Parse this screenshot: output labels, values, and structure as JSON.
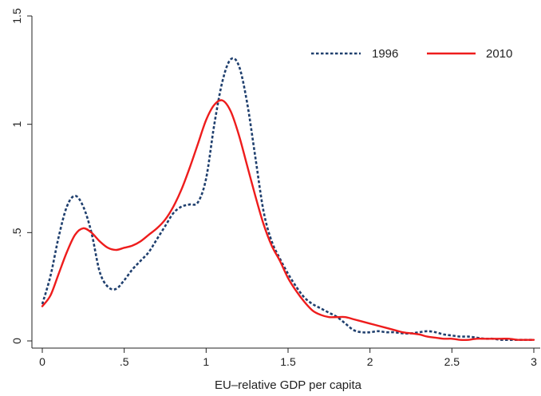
{
  "chart_data": {
    "type": "line",
    "title": "",
    "xlabel": "EU–relative GDP per capita",
    "ylabel": "",
    "xlim": [
      0,
      3
    ],
    "ylim": [
      0,
      1.5
    ],
    "x_ticks": [
      0,
      0.5,
      1,
      1.5,
      2,
      2.5,
      3
    ],
    "x_tick_labels": [
      "0",
      ".5",
      "1",
      "1.5",
      "2",
      "2.5",
      "3"
    ],
    "y_ticks": [
      0,
      0.5,
      1,
      1.5
    ],
    "y_tick_labels": [
      "0",
      ".5",
      "1",
      "1.5"
    ],
    "grid": false,
    "legend_position": "top-right",
    "series": [
      {
        "name": "1996",
        "color": "#1f3f6e",
        "style": "dotted",
        "x": [
          0,
          0.05,
          0.1,
          0.15,
          0.2,
          0.25,
          0.3,
          0.35,
          0.4,
          0.45,
          0.5,
          0.55,
          0.6,
          0.65,
          0.7,
          0.75,
          0.8,
          0.85,
          0.9,
          0.95,
          1.0,
          1.05,
          1.1,
          1.15,
          1.2,
          1.25,
          1.3,
          1.35,
          1.4,
          1.45,
          1.5,
          1.55,
          1.6,
          1.65,
          1.7,
          1.75,
          1.8,
          1.85,
          1.9,
          1.95,
          2.0,
          2.05,
          2.1,
          2.15,
          2.2,
          2.25,
          2.3,
          2.35,
          2.4,
          2.45,
          2.5,
          2.55,
          2.6,
          2.65,
          2.7,
          2.75,
          2.8,
          2.85,
          2.9,
          2.95,
          3.0
        ],
        "values": [
          0.17,
          0.3,
          0.48,
          0.62,
          0.67,
          0.62,
          0.5,
          0.32,
          0.25,
          0.24,
          0.28,
          0.33,
          0.37,
          0.41,
          0.47,
          0.53,
          0.59,
          0.62,
          0.63,
          0.64,
          0.75,
          1.0,
          1.2,
          1.3,
          1.27,
          1.1,
          0.85,
          0.6,
          0.46,
          0.38,
          0.31,
          0.25,
          0.2,
          0.17,
          0.15,
          0.13,
          0.11,
          0.08,
          0.05,
          0.04,
          0.04,
          0.045,
          0.04,
          0.04,
          0.035,
          0.035,
          0.04,
          0.045,
          0.04,
          0.03,
          0.025,
          0.02,
          0.02,
          0.015,
          0.01,
          0.01,
          0.005,
          0.005,
          0.005,
          0.005,
          0.005
        ]
      },
      {
        "name": "2010",
        "color": "#ee1c1c",
        "style": "solid",
        "x": [
          0,
          0.05,
          0.1,
          0.15,
          0.2,
          0.25,
          0.3,
          0.35,
          0.4,
          0.45,
          0.5,
          0.55,
          0.6,
          0.65,
          0.7,
          0.75,
          0.8,
          0.85,
          0.9,
          0.95,
          1.0,
          1.05,
          1.1,
          1.15,
          1.2,
          1.25,
          1.3,
          1.35,
          1.4,
          1.45,
          1.5,
          1.55,
          1.6,
          1.65,
          1.7,
          1.75,
          1.8,
          1.85,
          1.9,
          1.95,
          2.0,
          2.05,
          2.1,
          2.15,
          2.2,
          2.25,
          2.3,
          2.35,
          2.4,
          2.45,
          2.5,
          2.55,
          2.6,
          2.65,
          2.7,
          2.75,
          2.8,
          2.85,
          2.9,
          2.95,
          3.0
        ],
        "values": [
          0.16,
          0.21,
          0.31,
          0.41,
          0.49,
          0.52,
          0.5,
          0.46,
          0.43,
          0.42,
          0.43,
          0.44,
          0.46,
          0.49,
          0.52,
          0.56,
          0.62,
          0.7,
          0.8,
          0.91,
          1.02,
          1.09,
          1.11,
          1.06,
          0.95,
          0.81,
          0.67,
          0.54,
          0.44,
          0.37,
          0.29,
          0.23,
          0.18,
          0.14,
          0.12,
          0.11,
          0.11,
          0.11,
          0.1,
          0.09,
          0.08,
          0.07,
          0.06,
          0.05,
          0.04,
          0.035,
          0.03,
          0.02,
          0.015,
          0.01,
          0.01,
          0.005,
          0.005,
          0.01,
          0.01,
          0.01,
          0.01,
          0.01,
          0.005,
          0.005,
          0.005
        ]
      }
    ]
  }
}
